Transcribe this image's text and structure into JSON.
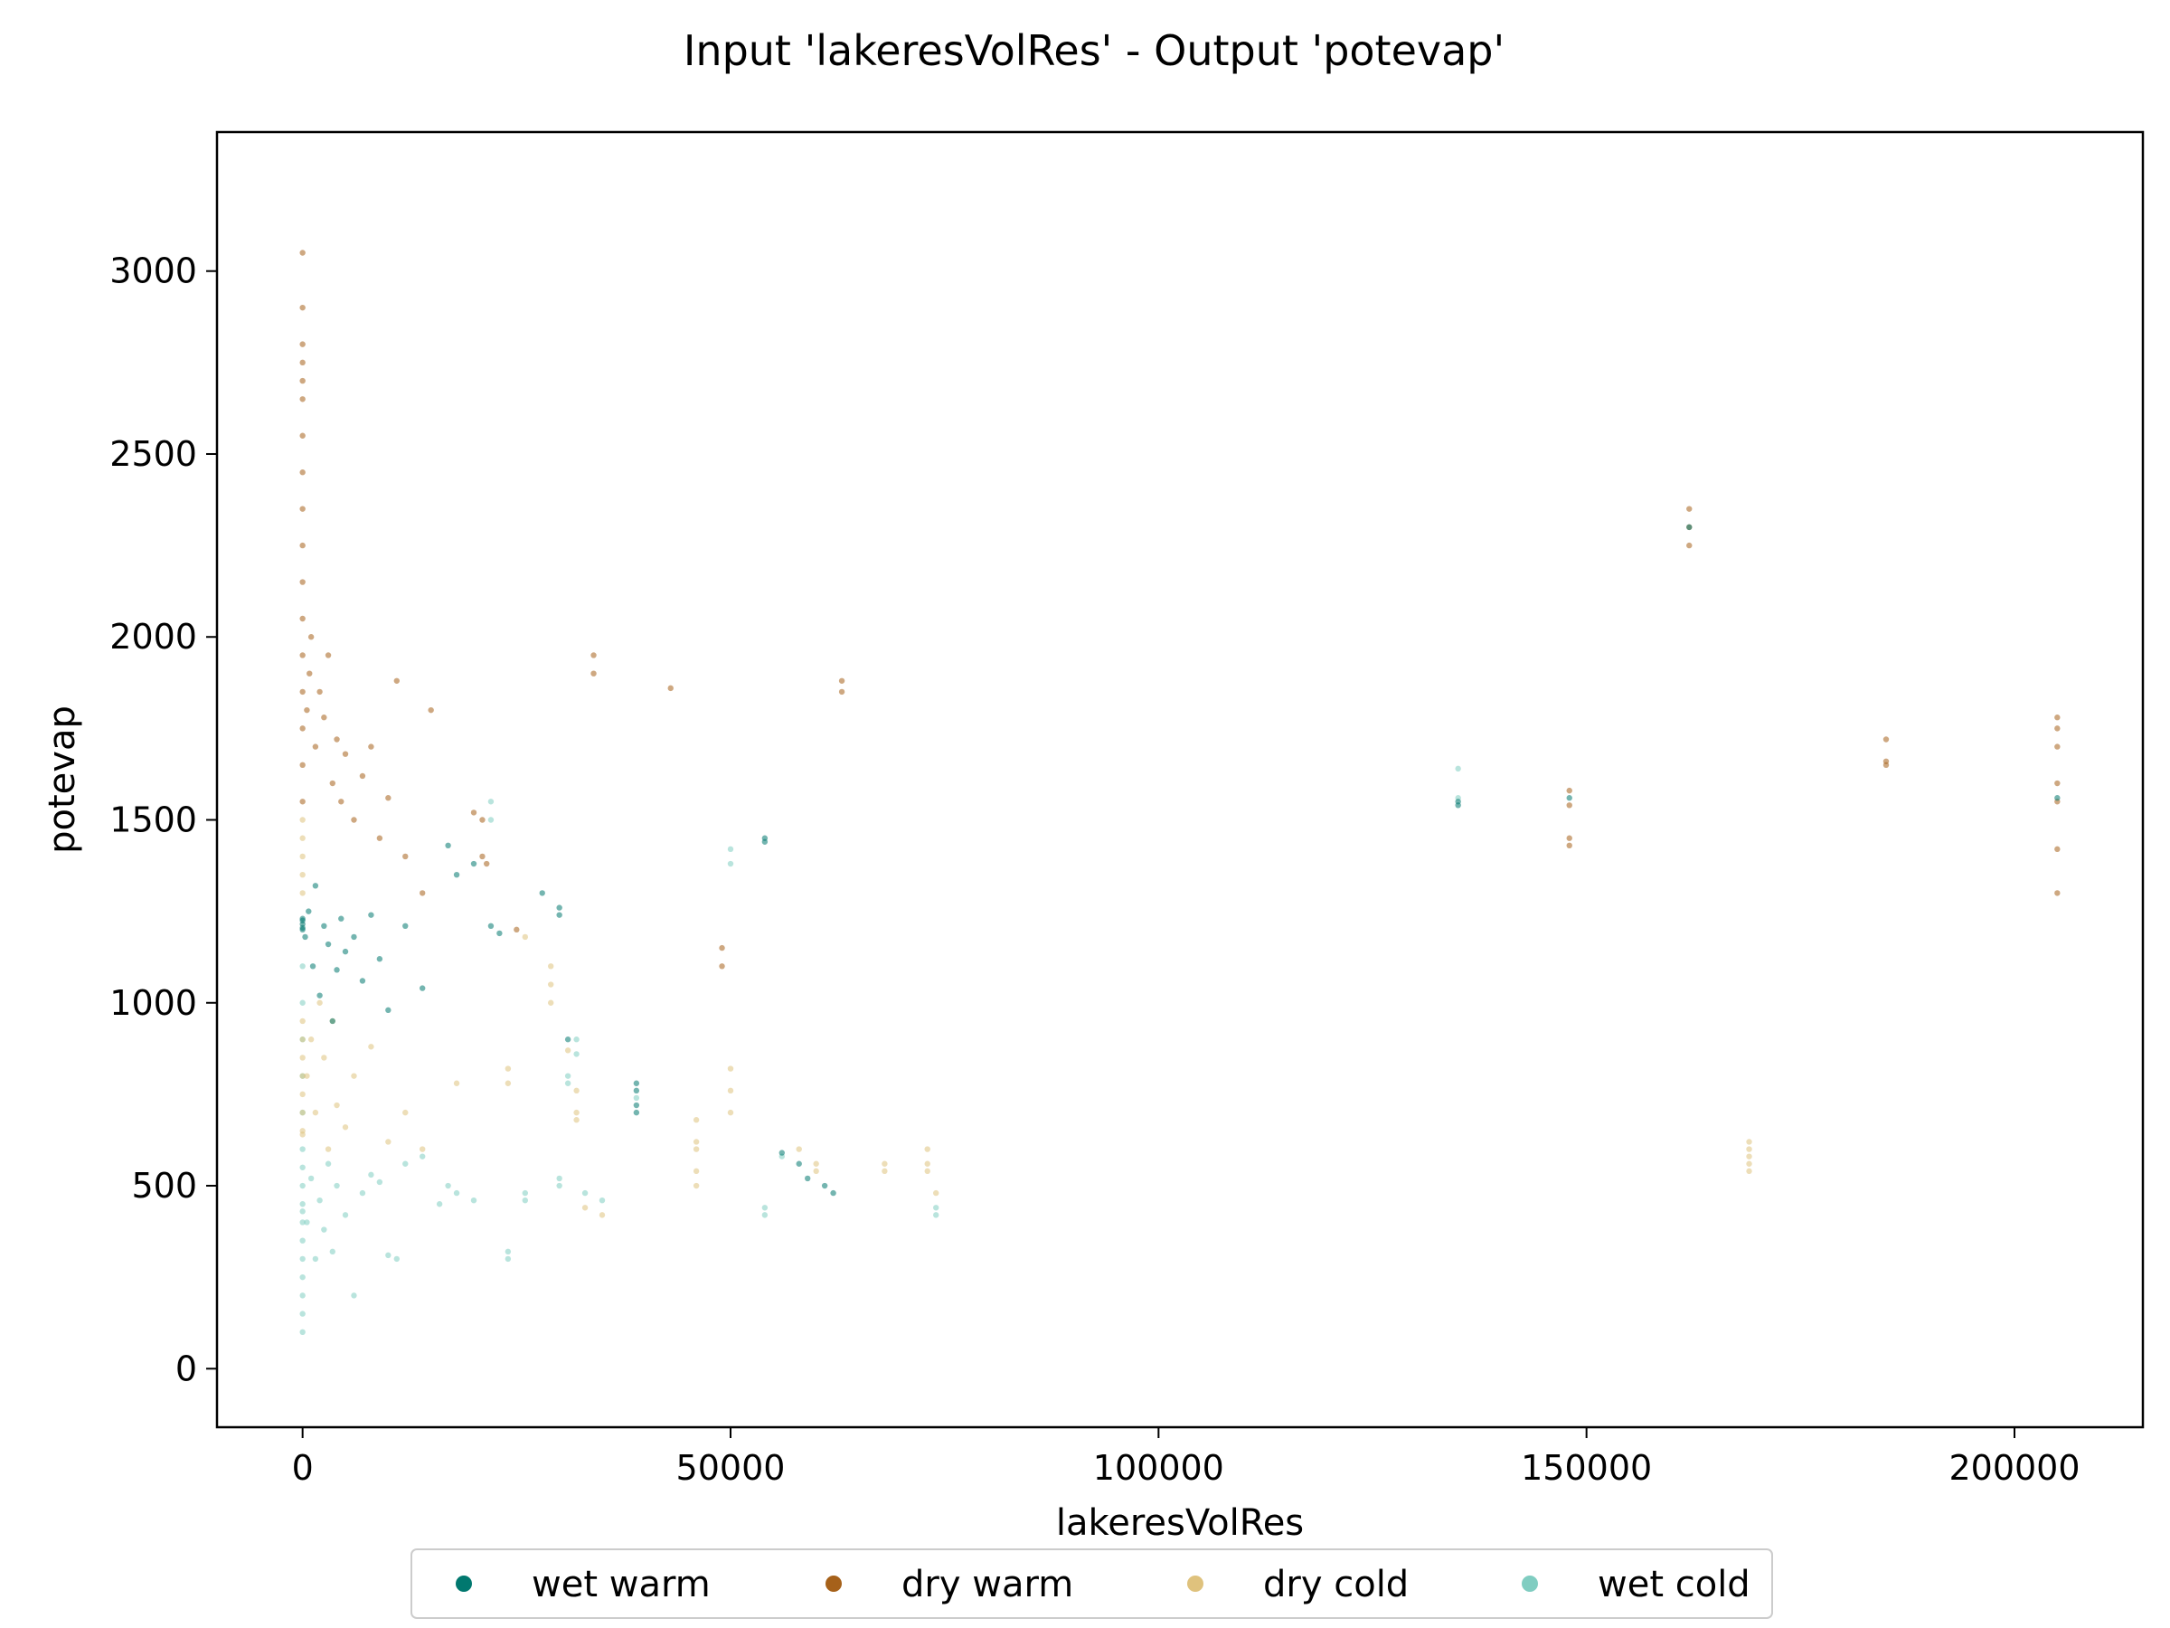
{
  "chart_data": {
    "type": "scatter",
    "title": "Input 'lakeresVolRes' - Output 'potevap'",
    "xlabel": "lakeresVolRes",
    "ylabel": "potevap",
    "xlim": [
      -10000,
      215000
    ],
    "ylim": [
      -160,
      3380
    ],
    "xticks": [
      0,
      50000,
      100000,
      150000,
      200000
    ],
    "xtick_labels": [
      "0",
      "50000",
      "100000",
      "150000",
      "200000"
    ],
    "yticks": [
      0,
      500,
      1000,
      1500,
      2000,
      2500,
      3000
    ],
    "ytick_labels": [
      "0",
      "500",
      "1000",
      "1500",
      "2000",
      "2500",
      "3000"
    ],
    "grid": false,
    "legend_position": "bottom-center",
    "series": [
      {
        "name": "wet warm",
        "color": "#01786f",
        "points": [
          [
            0,
            1205
          ],
          [
            0,
            1215
          ],
          [
            0,
            1225
          ],
          [
            0,
            1200
          ],
          [
            0,
            1230
          ],
          [
            300,
            1180
          ],
          [
            700,
            1250
          ],
          [
            1200,
            1100
          ],
          [
            1500,
            1320
          ],
          [
            2000,
            1020
          ],
          [
            2500,
            1210
          ],
          [
            3000,
            1160
          ],
          [
            3500,
            950
          ],
          [
            4000,
            1090
          ],
          [
            4500,
            1230
          ],
          [
            5000,
            1140
          ],
          [
            6000,
            1180
          ],
          [
            7000,
            1060
          ],
          [
            8000,
            1240
          ],
          [
            9000,
            1120
          ],
          [
            10000,
            980
          ],
          [
            12000,
            1210
          ],
          [
            14000,
            1040
          ],
          [
            17000,
            1430
          ],
          [
            18000,
            1350
          ],
          [
            20000,
            1380
          ],
          [
            22000,
            1210
          ],
          [
            23000,
            1190
          ],
          [
            28000,
            1300
          ],
          [
            30000,
            1240
          ],
          [
            30000,
            1260
          ],
          [
            31000,
            900
          ],
          [
            39000,
            700
          ],
          [
            39000,
            720
          ],
          [
            39000,
            760
          ],
          [
            39000,
            780
          ],
          [
            54000,
            1450
          ],
          [
            54000,
            1440
          ],
          [
            56000,
            590
          ],
          [
            58000,
            560
          ],
          [
            59000,
            520
          ],
          [
            61000,
            500
          ],
          [
            62000,
            480
          ],
          [
            135000,
            1550
          ],
          [
            135000,
            1540
          ],
          [
            148000,
            1560
          ],
          [
            162000,
            2300
          ],
          [
            205000,
            1560
          ]
        ]
      },
      {
        "name": "dry warm",
        "color": "#a6611a",
        "points": [
          [
            0,
            1550
          ],
          [
            0,
            1650
          ],
          [
            0,
            1750
          ],
          [
            0,
            1850
          ],
          [
            0,
            1950
          ],
          [
            0,
            2050
          ],
          [
            0,
            2150
          ],
          [
            0,
            2250
          ],
          [
            0,
            2350
          ],
          [
            0,
            2450
          ],
          [
            0,
            2550
          ],
          [
            0,
            2650
          ],
          [
            0,
            2700
          ],
          [
            0,
            2750
          ],
          [
            0,
            2800
          ],
          [
            0,
            2900
          ],
          [
            0,
            3050
          ],
          [
            500,
            1800
          ],
          [
            800,
            1900
          ],
          [
            1000,
            2000
          ],
          [
            1500,
            1700
          ],
          [
            2000,
            1850
          ],
          [
            2500,
            1780
          ],
          [
            3000,
            1950
          ],
          [
            3500,
            1600
          ],
          [
            4000,
            1720
          ],
          [
            4500,
            1550
          ],
          [
            5000,
            1680
          ],
          [
            6000,
            1500
          ],
          [
            7000,
            1620
          ],
          [
            8000,
            1700
          ],
          [
            9000,
            1450
          ],
          [
            10000,
            1560
          ],
          [
            11000,
            1880
          ],
          [
            12000,
            1400
          ],
          [
            14000,
            1300
          ],
          [
            15000,
            1800
          ],
          [
            20000,
            1520
          ],
          [
            21000,
            1500
          ],
          [
            21000,
            1400
          ],
          [
            21500,
            1380
          ],
          [
            25000,
            1200
          ],
          [
            34000,
            1950
          ],
          [
            34000,
            1900
          ],
          [
            43000,
            1860
          ],
          [
            49000,
            1100
          ],
          [
            49000,
            1150
          ],
          [
            63000,
            1880
          ],
          [
            63000,
            1850
          ],
          [
            148000,
            1580
          ],
          [
            148000,
            1540
          ],
          [
            148000,
            1450
          ],
          [
            148000,
            1430
          ],
          [
            162000,
            2350
          ],
          [
            162000,
            2300
          ],
          [
            162000,
            2250
          ],
          [
            185000,
            1720
          ],
          [
            185000,
            1660
          ],
          [
            185000,
            1650
          ],
          [
            205000,
            1780
          ],
          [
            205000,
            1750
          ],
          [
            205000,
            1700
          ],
          [
            205000,
            1600
          ],
          [
            205000,
            1550
          ],
          [
            205000,
            1420
          ],
          [
            205000,
            1300
          ]
        ]
      },
      {
        "name": "dry cold",
        "color": "#dfc27d",
        "points": [
          [
            0,
            1300
          ],
          [
            0,
            1350
          ],
          [
            0,
            1400
          ],
          [
            0,
            1450
          ],
          [
            0,
            1500
          ],
          [
            0,
            650
          ],
          [
            0,
            640
          ],
          [
            0,
            700
          ],
          [
            0,
            750
          ],
          [
            0,
            800
          ],
          [
            0,
            850
          ],
          [
            0,
            900
          ],
          [
            0,
            950
          ],
          [
            500,
            800
          ],
          [
            1000,
            900
          ],
          [
            1500,
            700
          ],
          [
            2000,
            1000
          ],
          [
            2500,
            850
          ],
          [
            3000,
            600
          ],
          [
            3500,
            950
          ],
          [
            4000,
            720
          ],
          [
            5000,
            660
          ],
          [
            6000,
            800
          ],
          [
            8000,
            880
          ],
          [
            10000,
            620
          ],
          [
            12000,
            700
          ],
          [
            14000,
            600
          ],
          [
            18000,
            780
          ],
          [
            24000,
            820
          ],
          [
            24000,
            780
          ],
          [
            26000,
            1180
          ],
          [
            29000,
            1100
          ],
          [
            29000,
            1050
          ],
          [
            29000,
            1000
          ],
          [
            31000,
            870
          ],
          [
            32000,
            760
          ],
          [
            32000,
            700
          ],
          [
            32000,
            680
          ],
          [
            33000,
            440
          ],
          [
            35000,
            420
          ],
          [
            46000,
            680
          ],
          [
            46000,
            620
          ],
          [
            46000,
            600
          ],
          [
            46000,
            540
          ],
          [
            46000,
            500
          ],
          [
            50000,
            820
          ],
          [
            50000,
            760
          ],
          [
            50000,
            700
          ],
          [
            58000,
            600
          ],
          [
            60000,
            560
          ],
          [
            60000,
            540
          ],
          [
            68000,
            560
          ],
          [
            68000,
            540
          ],
          [
            73000,
            600
          ],
          [
            73000,
            560
          ],
          [
            73000,
            540
          ],
          [
            74000,
            480
          ],
          [
            169000,
            620
          ],
          [
            169000,
            600
          ],
          [
            169000,
            580
          ],
          [
            169000,
            560
          ],
          [
            169000,
            540
          ]
        ]
      },
      {
        "name": "wet cold",
        "color": "#80cdc1",
        "points": [
          [
            0,
            100
          ],
          [
            0,
            150
          ],
          [
            0,
            200
          ],
          [
            0,
            250
          ],
          [
            0,
            300
          ],
          [
            0,
            350
          ],
          [
            0,
            400
          ],
          [
            0,
            430
          ],
          [
            0,
            450
          ],
          [
            0,
            500
          ],
          [
            0,
            550
          ],
          [
            0,
            600
          ],
          [
            0,
            700
          ],
          [
            0,
            800
          ],
          [
            0,
            900
          ],
          [
            0,
            1000
          ],
          [
            0,
            1100
          ],
          [
            500,
            400
          ],
          [
            1000,
            520
          ],
          [
            1500,
            300
          ],
          [
            2000,
            460
          ],
          [
            2500,
            380
          ],
          [
            3000,
            560
          ],
          [
            3500,
            320
          ],
          [
            4000,
            500
          ],
          [
            5000,
            420
          ],
          [
            6000,
            200
          ],
          [
            7000,
            480
          ],
          [
            8000,
            530
          ],
          [
            9000,
            510
          ],
          [
            10000,
            310
          ],
          [
            11000,
            300
          ],
          [
            12000,
            560
          ],
          [
            14000,
            580
          ],
          [
            16000,
            450
          ],
          [
            17000,
            500
          ],
          [
            18000,
            480
          ],
          [
            20000,
            460
          ],
          [
            22000,
            1500
          ],
          [
            22000,
            1550
          ],
          [
            24000,
            320
          ],
          [
            24000,
            300
          ],
          [
            26000,
            480
          ],
          [
            26000,
            460
          ],
          [
            30000,
            520
          ],
          [
            30000,
            500
          ],
          [
            31000,
            800
          ],
          [
            31000,
            780
          ],
          [
            32000,
            860
          ],
          [
            32000,
            900
          ],
          [
            33000,
            480
          ],
          [
            35000,
            460
          ],
          [
            39000,
            740
          ],
          [
            50000,
            1420
          ],
          [
            50000,
            1380
          ],
          [
            54000,
            440
          ],
          [
            54000,
            420
          ],
          [
            56000,
            580
          ],
          [
            74000,
            440
          ],
          [
            74000,
            420
          ],
          [
            135000,
            1640
          ],
          [
            135000,
            1560
          ]
        ]
      }
    ]
  }
}
